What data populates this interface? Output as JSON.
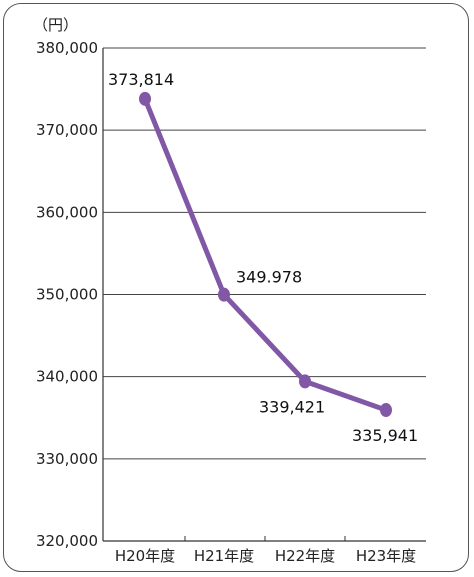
{
  "chart_data": {
    "type": "line",
    "title": "",
    "xlabel": "",
    "ylabel": "",
    "unit_label": "（円）",
    "categories": [
      "H20年度",
      "H21年度",
      "H22年度",
      "H23年度"
    ],
    "series": [
      {
        "values": [
          373814,
          349978,
          339421,
          335941
        ],
        "data_labels": [
          "373,814",
          "349.978",
          "339,421",
          "335,941"
        ],
        "color": "#8058a5"
      }
    ],
    "ylim": [
      320000,
      380000
    ],
    "yticks": [
      380000,
      370000,
      360000,
      350000,
      340000,
      330000,
      320000
    ],
    "ytick_labels": [
      "380,000",
      "370,000",
      "360,000",
      "350,000",
      "340,000",
      "330,000",
      "320,000"
    ],
    "grid": true,
    "legend": "none"
  }
}
